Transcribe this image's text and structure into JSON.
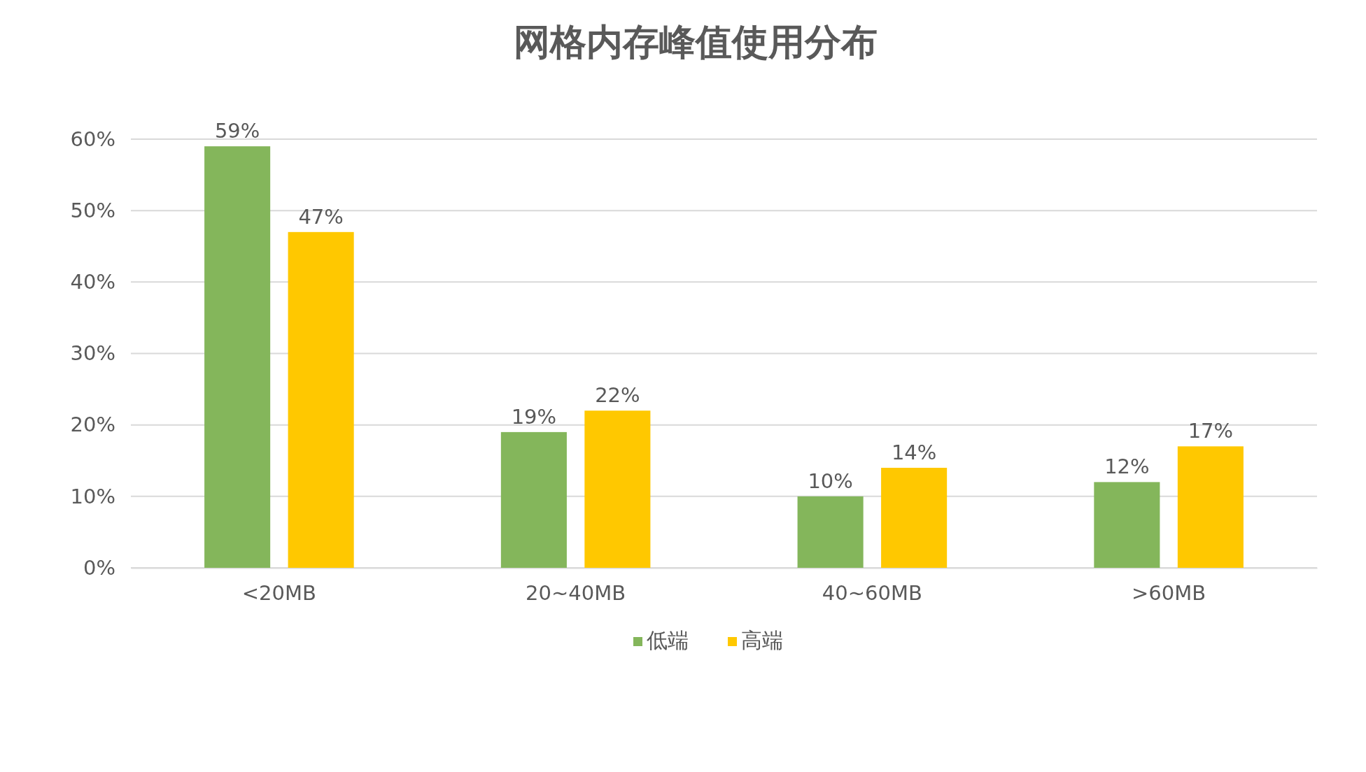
{
  "chart_data": {
    "type": "bar",
    "title": "网格内存峰值使用分布",
    "categories": [
      "<20MB",
      "20~40MB",
      "40~60MB",
      ">60MB"
    ],
    "series": [
      {
        "name": "低端",
        "color": "#84b65b",
        "values": [
          59,
          19,
          10,
          12
        ],
        "value_labels": [
          "59%",
          "19%",
          "10%",
          "12%"
        ]
      },
      {
        "name": "高端",
        "color": "#ffc800",
        "values": [
          47,
          22,
          14,
          17
        ],
        "value_labels": [
          "47%",
          "22%",
          "14%",
          "17%"
        ]
      }
    ],
    "ylim": [
      0,
      60
    ],
    "yticks": [
      {
        "value": 0,
        "label": "0%"
      },
      {
        "value": 10,
        "label": "10%"
      },
      {
        "value": 20,
        "label": "20%"
      },
      {
        "value": 30,
        "label": "30%"
      },
      {
        "value": 40,
        "label": "40%"
      },
      {
        "value": 50,
        "label": "50%"
      },
      {
        "value": 60,
        "label": "60%"
      }
    ],
    "grid": "y",
    "legend": "bottom"
  }
}
